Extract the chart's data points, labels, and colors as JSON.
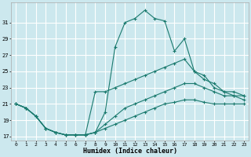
{
  "xlabel": "Humidex (Indice chaleur)",
  "bg_color": "#cce8ee",
  "grid_color": "#b8d8e0",
  "line_color": "#1a7a6e",
  "xlim_min": -0.5,
  "xlim_max": 23.5,
  "ylim_min": 16.5,
  "ylim_max": 33.5,
  "xticks": [
    0,
    1,
    2,
    3,
    4,
    5,
    6,
    7,
    8,
    9,
    10,
    11,
    12,
    13,
    14,
    15,
    16,
    17,
    18,
    19,
    20,
    21,
    22,
    23
  ],
  "yticks": [
    17,
    19,
    21,
    23,
    25,
    27,
    29,
    31
  ],
  "line1_x": [
    0,
    1,
    2,
    3,
    4,
    5,
    6,
    7,
    8,
    9,
    10,
    11,
    12,
    13,
    14,
    15,
    16,
    17,
    18,
    19,
    20,
    21,
    22,
    23
  ],
  "line1_y": [
    21,
    20.5,
    19.5,
    18.0,
    17.5,
    17.2,
    17.2,
    17.2,
    17.5,
    20.0,
    28.0,
    31.0,
    31.5,
    32.5,
    31.5,
    31.2,
    27.5,
    29.0,
    25.0,
    24.0,
    23.5,
    22.5,
    22.5,
    22.0
  ],
  "line2_x": [
    0,
    1,
    2,
    3,
    4,
    5,
    6,
    7,
    8,
    9,
    10,
    11,
    12,
    13,
    14,
    15,
    16,
    17,
    18,
    19,
    20,
    21,
    22,
    23
  ],
  "line2_y": [
    21,
    20.5,
    19.5,
    18.0,
    17.5,
    17.2,
    17.2,
    17.2,
    22.5,
    22.5,
    23.0,
    23.5,
    24.0,
    24.5,
    25.0,
    25.5,
    26.0,
    26.5,
    25.0,
    24.5,
    23.0,
    22.5,
    22.0,
    21.5
  ],
  "line3_x": [
    0,
    1,
    2,
    3,
    4,
    5,
    6,
    7,
    8,
    9,
    10,
    11,
    12,
    13,
    14,
    15,
    16,
    17,
    18,
    19,
    20,
    21,
    22,
    23
  ],
  "line3_y": [
    21,
    20.5,
    19.5,
    18.0,
    17.5,
    17.2,
    17.2,
    17.2,
    17.5,
    18.5,
    19.5,
    20.5,
    21.0,
    21.5,
    22.0,
    22.5,
    23.0,
    23.5,
    23.5,
    23.0,
    22.5,
    22.0,
    22.0,
    22.0
  ],
  "line4_x": [
    0,
    1,
    2,
    3,
    4,
    5,
    6,
    7,
    8,
    9,
    10,
    11,
    12,
    13,
    14,
    15,
    16,
    17,
    18,
    19,
    20,
    21,
    22,
    23
  ],
  "line4_y": [
    21,
    20.5,
    19.5,
    18.0,
    17.5,
    17.2,
    17.2,
    17.2,
    17.5,
    18.0,
    18.5,
    19.0,
    19.5,
    20.0,
    20.5,
    21.0,
    21.2,
    21.5,
    21.5,
    21.2,
    21.0,
    21.0,
    21.0,
    21.0
  ]
}
